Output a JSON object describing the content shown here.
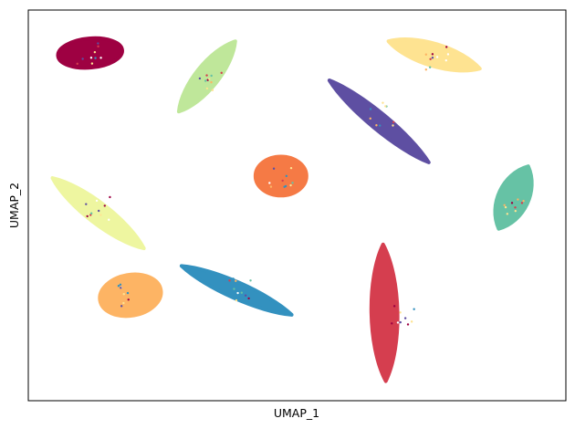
{
  "chart_data": {
    "type": "scatter",
    "title": "",
    "xlabel": "UMAP_1",
    "ylabel": "UMAP_2",
    "xlim": [
      0,
      10
    ],
    "ylim": [
      0,
      10
    ],
    "grid": false,
    "ticks": "none",
    "legend": "none",
    "clusters": [
      {
        "color": "#9e0142",
        "center": [
          1.15,
          8.9
        ],
        "shape": "blob",
        "size": [
          1.2,
          0.75
        ],
        "angle": -5
      },
      {
        "color": "#bfe79a",
        "center": [
          3.4,
          8.1
        ],
        "shape": "band",
        "from": [
          3.85,
          9.2
        ],
        "to": [
          2.8,
          7.4
        ],
        "width": 0.55
      },
      {
        "color": "#fee391",
        "center": [
          7.6,
          8.8
        ],
        "shape": "band",
        "from": [
          6.7,
          9.2
        ],
        "to": [
          8.4,
          8.5
        ],
        "width": 0.55
      },
      {
        "color": "#5e4fa2",
        "center": [
          6.6,
          7.3
        ],
        "shape": "band",
        "from": [
          5.6,
          8.2
        ],
        "to": [
          7.45,
          6.1
        ],
        "width": 0.4
      },
      {
        "color": "#f57a45",
        "center": [
          4.7,
          5.75
        ],
        "shape": "blob",
        "size": [
          0.95,
          1.0
        ],
        "angle": 0
      },
      {
        "color": "#66c2a5",
        "center": [
          9.0,
          5.1
        ],
        "shape": "band",
        "from": [
          9.3,
          6.0
        ],
        "to": [
          8.75,
          4.4
        ],
        "width": 0.75
      },
      {
        "color": "#eef6a0",
        "center": [
          1.3,
          4.9
        ],
        "shape": "band",
        "from": [
          0.45,
          5.7
        ],
        "to": [
          2.15,
          3.9
        ],
        "width": 0.5
      },
      {
        "color": "#fdb464",
        "center": [
          1.9,
          2.7
        ],
        "shape": "blob",
        "size": [
          1.15,
          1.05
        ],
        "angle": -10
      },
      {
        "color": "#3391bf",
        "center": [
          3.9,
          2.8
        ],
        "shape": "band",
        "from": [
          2.85,
          3.45
        ],
        "to": [
          4.9,
          2.2
        ],
        "width": 0.4
      },
      {
        "color": "#d53e4f",
        "center": [
          6.95,
          2.25
        ],
        "shape": "band",
        "from": [
          6.6,
          4.0
        ],
        "to": [
          6.65,
          0.5
        ],
        "width": 0.65
      }
    ]
  }
}
